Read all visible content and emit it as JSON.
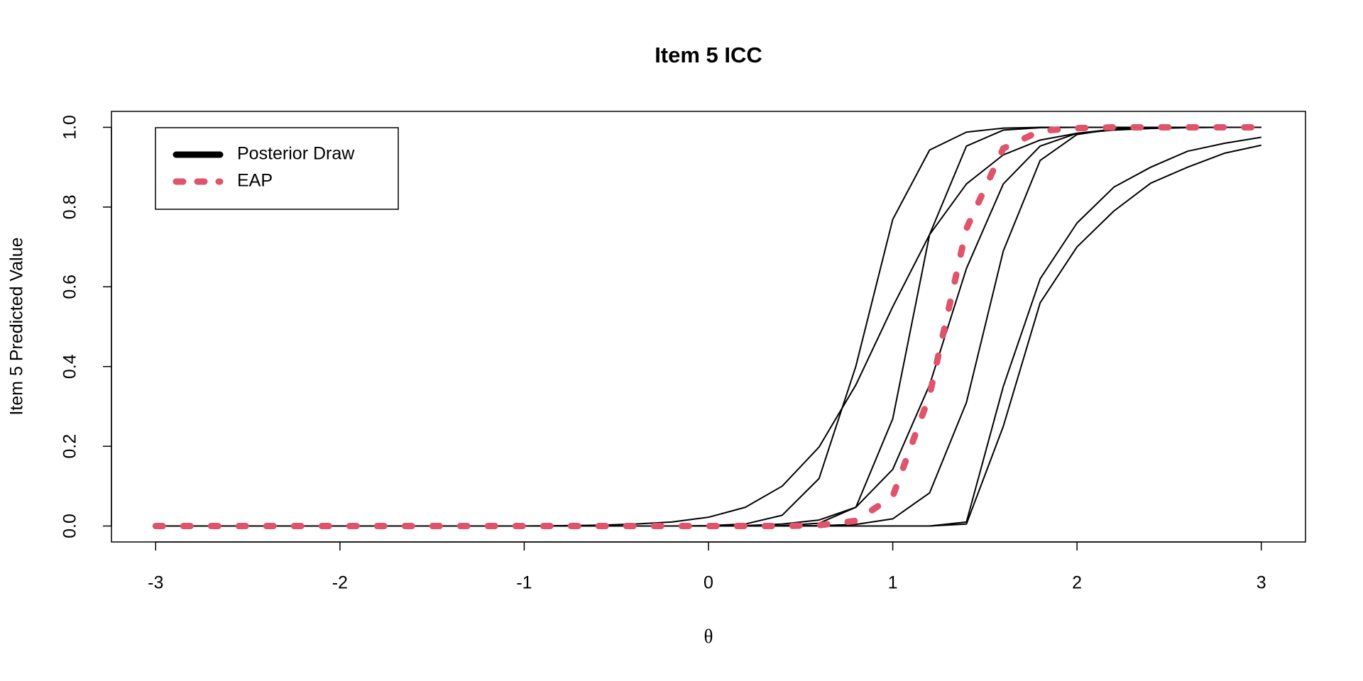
{
  "chart_data": {
    "type": "line",
    "title": "Item 5 ICC",
    "x_label": "θ",
    "y_label": "Item 5 Predicted Value",
    "x": [
      -3,
      -2.8,
      -2.6,
      -2.4,
      -2.2,
      -2,
      -1.8,
      -1.6,
      -1.4,
      -1.2,
      -1,
      -0.8,
      -0.6,
      -0.4,
      -0.2,
      0,
      0.2,
      0.4,
      0.6,
      0.8,
      1,
      1.2,
      1.4,
      1.6,
      1.8,
      2,
      2.2,
      2.4,
      2.6,
      2.8,
      3
    ],
    "xlim": [
      -3.24,
      3.24
    ],
    "ylim": [
      -0.04,
      1.04
    ],
    "xticks": [
      -3,
      -2,
      -1,
      0,
      1,
      2,
      3
    ],
    "yticks": [
      {
        "value": 0,
        "label": "0.0"
      },
      0.2,
      0.4,
      0.6,
      0.8,
      {
        "value": 1,
        "label": "1.0"
      }
    ],
    "legend_position": "top-left",
    "series": [
      {
        "name": "Posterior Draw",
        "color": "#000000",
        "draws": [
          [
            0,
            0,
            0,
            0,
            0,
            0,
            0,
            0,
            0,
            0,
            0,
            0,
            0,
            0,
            0,
            0.001,
            0.005,
            0.027,
            0.119,
            0.401,
            0.769,
            0.943,
            0.988,
            0.998,
            1,
            1,
            1,
            1,
            1,
            1,
            1
          ],
          [
            0,
            0,
            0,
            0,
            0,
            0,
            0,
            0,
            0,
            0,
            0,
            0.001,
            0.002,
            0.005,
            0.01,
            0.022,
            0.047,
            0.1,
            0.198,
            0.354,
            0.55,
            0.731,
            0.858,
            0.931,
            0.968,
            0.985,
            0.993,
            0.997,
            0.999,
            1,
            1
          ],
          [
            0,
            0,
            0,
            0,
            0,
            0,
            0,
            0,
            0,
            0,
            0,
            0,
            0,
            0,
            0,
            0,
            0,
            0.001,
            0.007,
            0.047,
            0.269,
            0.731,
            0.953,
            0.993,
            0.999,
            1,
            1,
            1,
            1,
            1,
            1
          ],
          [
            0,
            0,
            0,
            0,
            0,
            0,
            0,
            0,
            0,
            0,
            0,
            0,
            0,
            0,
            0,
            0,
            0.001,
            0.005,
            0.015,
            0.047,
            0.142,
            0.354,
            0.646,
            0.858,
            0.953,
            0.985,
            0.995,
            0.999,
            1,
            1,
            1
          ],
          [
            0,
            0,
            0,
            0,
            0,
            0,
            0,
            0,
            0,
            0,
            0,
            0,
            0,
            0,
            0,
            0,
            0,
            0,
            0.001,
            0.004,
            0.018,
            0.083,
            0.31,
            0.69,
            0.917,
            0.982,
            0.996,
            0.999,
            1,
            1,
            1
          ],
          [
            0,
            0,
            0,
            0,
            0,
            0,
            0,
            0,
            0,
            0,
            0,
            0,
            0,
            0,
            0,
            0,
            0,
            0,
            0,
            0,
            0,
            0,
            0.005,
            0.25,
            0.56,
            0.7,
            0.79,
            0.86,
            0.9,
            0.935,
            0.955
          ],
          [
            0,
            0,
            0,
            0,
            0,
            0,
            0,
            0,
            0,
            0,
            0,
            0,
            0,
            0,
            0,
            0,
            0,
            0,
            0,
            0,
            0,
            0,
            0.01,
            0.35,
            0.62,
            0.76,
            0.85,
            0.9,
            0.94,
            0.96,
            0.975
          ]
        ]
      },
      {
        "name": "EAP",
        "color": "#DF536B",
        "dashed": true,
        "values": [
          0,
          0,
          0,
          0,
          0,
          0,
          0,
          0,
          0,
          0,
          0,
          0,
          0,
          0,
          0,
          0,
          0,
          0,
          0.002,
          0.013,
          0.074,
          0.328,
          0.746,
          0.947,
          0.991,
          0.998,
          1,
          1,
          1,
          1,
          1
        ]
      }
    ]
  }
}
